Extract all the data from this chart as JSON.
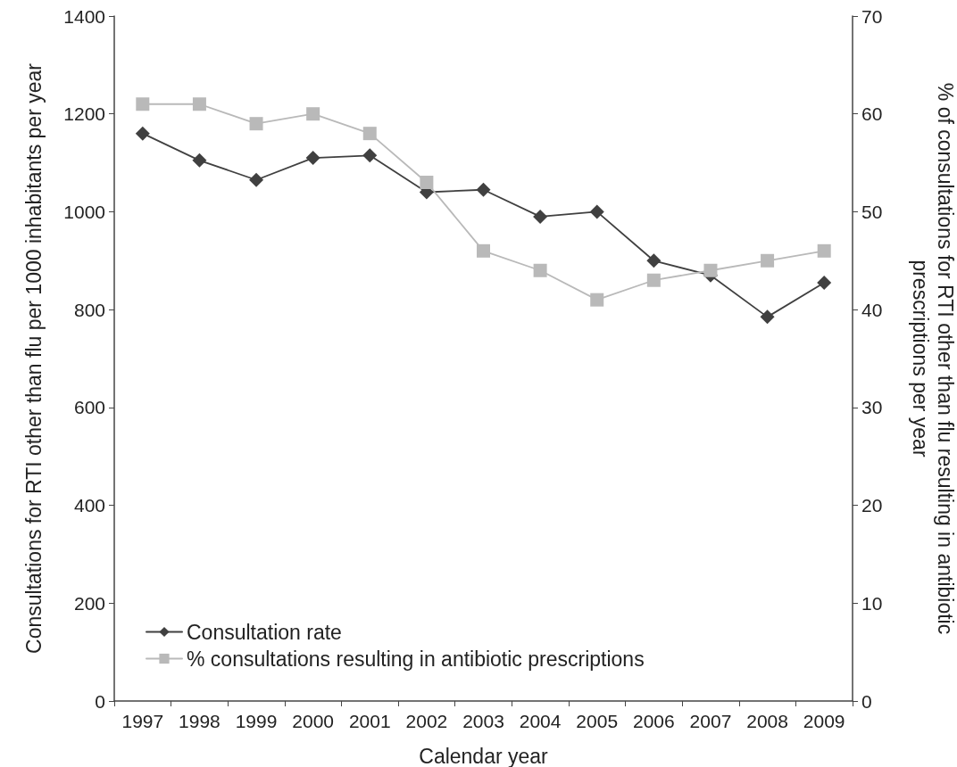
{
  "chart_data": {
    "type": "line",
    "xlabel": "Calendar year",
    "ylabel": "Consultations for RTI other than flu per 1000 inhabitants per year",
    "y2label": "% of consultations for RTI other than flu resulting in antibiotic prescriptions per year",
    "categories": [
      "1997",
      "1998",
      "1999",
      "2000",
      "2001",
      "2002",
      "2003",
      "2004",
      "2005",
      "2006",
      "2007",
      "2008",
      "2009"
    ],
    "series": [
      {
        "name": "Consultation rate",
        "color": "#404040",
        "marker": "diamond",
        "values": [
          1160,
          1105,
          1065,
          1110,
          1115,
          1040,
          1045,
          990,
          1000,
          900,
          870,
          785,
          855
        ]
      },
      {
        "name": "% consultations resulting in antibiotic prescriptions",
        "color": "#b9b9b9",
        "marker": "square",
        "axis": "y2",
        "values": [
          61,
          61,
          59,
          60,
          58,
          53,
          46,
          44,
          41,
          43,
          44,
          45,
          46
        ]
      }
    ],
    "ylim": [
      0,
      1400
    ],
    "yticks": [
      0,
      200,
      400,
      600,
      800,
      1000,
      1200,
      1400
    ],
    "y2lim": [
      0,
      70
    ],
    "y2ticks": [
      0,
      10,
      20,
      30,
      40,
      50,
      60,
      70
    ],
    "grid": false,
    "legend": "bottom left",
    "line_style": "solid"
  }
}
